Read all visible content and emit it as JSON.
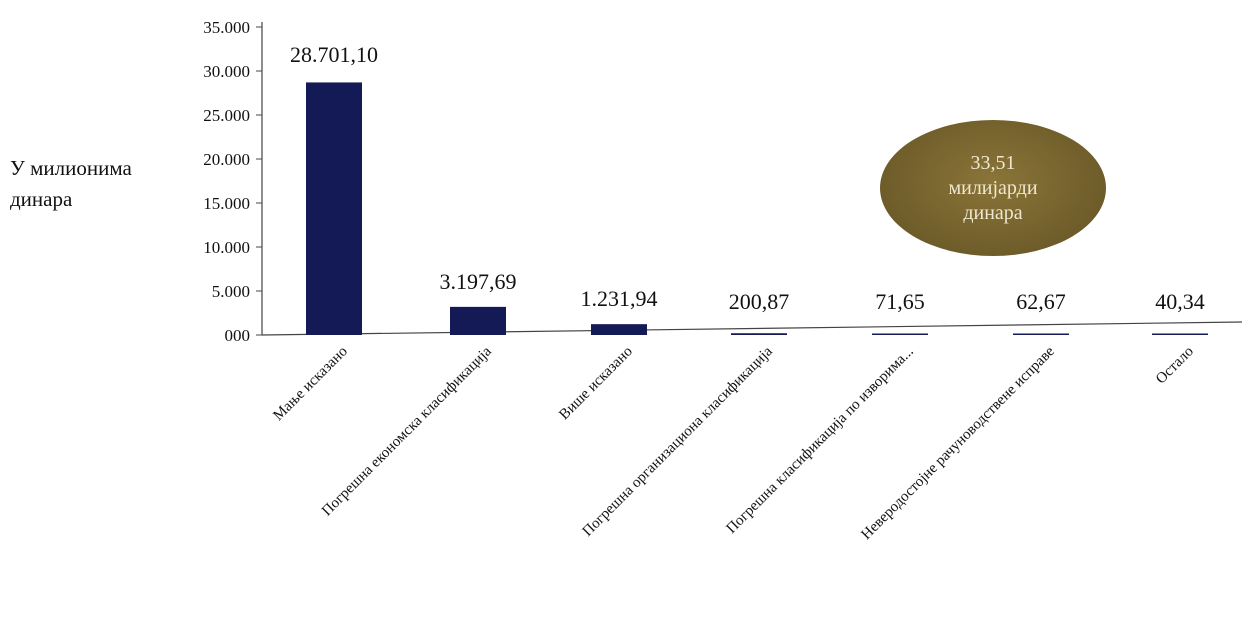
{
  "chart_data": {
    "type": "bar",
    "ylabel_lines": [
      "У милионима",
      "динара"
    ],
    "categories": [
      "Мање исказано",
      "Погрешна економска класификација",
      "Више исказано",
      "Погрешна организациона класификација",
      "Погрешна класификација по изворима...",
      "Неверодостојне рачуноводствене исправе",
      "Остало"
    ],
    "values": [
      28701.1,
      3197.69,
      1231.94,
      200.87,
      71.65,
      62.67,
      40.34
    ],
    "data_labels": [
      "28.701,10",
      "3.197,69",
      "1.231,94",
      "200,87",
      "71,65",
      "62,67",
      "40,34"
    ],
    "yticks": [
      "000",
      "5.000",
      "10.000",
      "15.000",
      "20.000",
      "25.000",
      "30.000",
      "35.000"
    ],
    "ylim": [
      0,
      35000
    ],
    "bar_color": "#141a55",
    "grid": false,
    "legend": "none",
    "annotation": {
      "lines": [
        "33,51",
        "милијарди",
        "динара"
      ],
      "color": "#7a6631"
    }
  }
}
